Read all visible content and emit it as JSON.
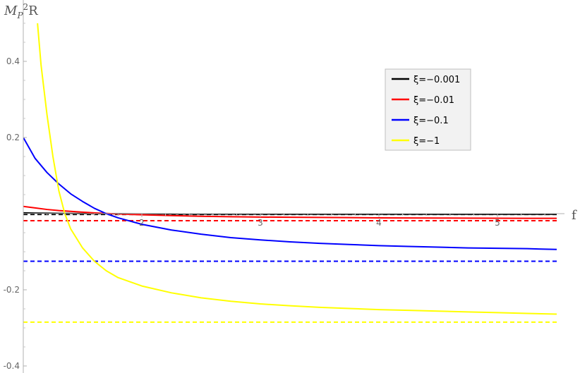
{
  "chart_data": {
    "type": "line",
    "xlabel": "f",
    "ylabel": "M_P^2 R",
    "ylabel_parts": {
      "base": "M",
      "sub": "P",
      "sup": "2",
      "tail": "R"
    },
    "xlim": [
      1,
      5.5
    ],
    "ylim": [
      -0.4,
      0.5
    ],
    "x_ticks": [
      2,
      3,
      4,
      5
    ],
    "x_tick_labels": [
      "2",
      "3",
      "4",
      "5"
    ],
    "y_ticks": [
      -0.4,
      -0.2,
      0.2,
      0.4
    ],
    "y_tick_labels": [
      "-0.4",
      "-0.2",
      "0.2",
      "0.4"
    ],
    "grid": false,
    "legend_position": "top-right",
    "series": [
      {
        "name": "ξ=−0.001",
        "color": "#000000",
        "x": [
          1,
          1.1,
          1.2,
          1.3,
          1.4,
          1.5,
          1.6,
          1.8,
          2,
          2.25,
          2.5,
          2.75,
          3,
          3.25,
          3.5,
          3.75,
          4,
          4.25,
          4.5,
          4.75,
          5,
          5.25,
          5.5
        ],
        "y": [
          0.002,
          0.0015,
          0.0011,
          0.0007,
          0.0004,
          0.0002,
          0.0,
          -0.0003,
          -0.0006,
          -0.0008,
          -0.001,
          -0.0011,
          -0.0012,
          -0.0013,
          -0.0014,
          -0.0014,
          -0.0015,
          -0.0015,
          -0.0016,
          -0.0016,
          -0.0016,
          -0.0016,
          -0.0017
        ],
        "asymptote": -0.002
      },
      {
        "name": "ξ=−0.01",
        "color": "#ff0000",
        "x": [
          1,
          1.1,
          1.2,
          1.3,
          1.4,
          1.5,
          1.6,
          1.8,
          2,
          2.25,
          2.5,
          2.75,
          3,
          3.25,
          3.5,
          3.75,
          4,
          4.25,
          4.5,
          4.75,
          5,
          5.25,
          5.5
        ],
        "y": [
          0.019,
          0.015,
          0.011,
          0.008,
          0.006,
          0.004,
          0.002,
          -0.001,
          -0.003,
          -0.005,
          -0.007,
          -0.008,
          -0.009,
          -0.0095,
          -0.01,
          -0.0105,
          -0.011,
          -0.0113,
          -0.0115,
          -0.0117,
          -0.012,
          -0.0122,
          -0.0123
        ],
        "asymptote": -0.0185
      },
      {
        "name": "ξ=−0.1",
        "color": "#0000ff",
        "x": [
          1,
          1.1,
          1.2,
          1.3,
          1.4,
          1.5,
          1.6,
          1.7,
          1.8,
          2,
          2.25,
          2.5,
          2.75,
          3,
          3.25,
          3.5,
          3.75,
          4,
          4.25,
          4.5,
          4.75,
          5,
          5.25,
          5.5
        ],
        "y": [
          0.2,
          0.145,
          0.108,
          0.078,
          0.052,
          0.032,
          0.014,
          0.0,
          -0.011,
          -0.028,
          -0.043,
          -0.054,
          -0.063,
          -0.069,
          -0.074,
          -0.078,
          -0.081,
          -0.084,
          -0.086,
          -0.088,
          -0.09,
          -0.091,
          -0.092,
          -0.094
        ],
        "asymptote": -0.125
      },
      {
        "name": "ξ=−1",
        "color": "#ffff00",
        "x": [
          1.12,
          1.15,
          1.2,
          1.25,
          1.3,
          1.35,
          1.4,
          1.5,
          1.6,
          1.7,
          1.8,
          2,
          2.25,
          2.5,
          2.75,
          3,
          3.25,
          3.5,
          3.75,
          4,
          4.25,
          4.5,
          4.75,
          5,
          5.25,
          5.5
        ],
        "y": [
          0.5,
          0.39,
          0.26,
          0.15,
          0.06,
          0.0,
          -0.04,
          -0.09,
          -0.125,
          -0.15,
          -0.168,
          -0.19,
          -0.208,
          -0.221,
          -0.23,
          -0.237,
          -0.242,
          -0.246,
          -0.249,
          -0.252,
          -0.254,
          -0.256,
          -0.258,
          -0.26,
          -0.262,
          -0.264
        ],
        "asymptote": -0.285
      }
    ]
  }
}
